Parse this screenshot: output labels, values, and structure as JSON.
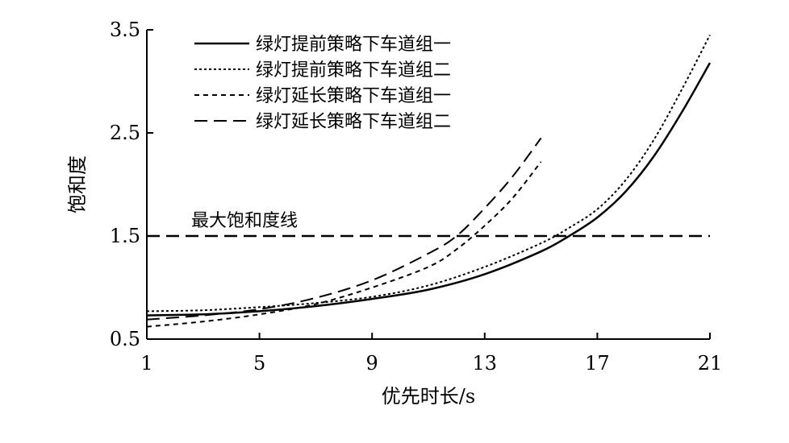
{
  "chart_data": {
    "type": "line",
    "xlabel": "优先时长/s",
    "ylabel": "饱和度",
    "xlim": [
      1,
      21
    ],
    "ylim": [
      0.5,
      3.5
    ],
    "xticks": [
      1,
      5,
      9,
      13,
      17,
      21
    ],
    "yticks": [
      0.5,
      1.5,
      2.5,
      3.5
    ],
    "ytick_labels": [
      "0.5",
      "1.5",
      "2.5",
      "3.5"
    ],
    "grid": false,
    "legend_position": "top-left",
    "series": [
      {
        "name": "绿灯提前策略下车道组一",
        "style": "solid",
        "x": [
          1,
          3,
          5,
          7,
          9,
          11,
          13,
          15,
          16,
          17,
          18,
          19,
          20,
          21
        ],
        "y": [
          0.73,
          0.74,
          0.77,
          0.82,
          0.89,
          0.98,
          1.13,
          1.35,
          1.5,
          1.68,
          1.93,
          2.27,
          2.7,
          3.18
        ]
      },
      {
        "name": "绿灯提前策略下车道组二",
        "style": "dotted",
        "x": [
          1,
          3,
          5,
          7,
          9,
          11,
          13,
          15,
          16,
          17,
          18,
          19,
          20,
          21
        ],
        "y": [
          0.77,
          0.78,
          0.81,
          0.85,
          0.91,
          1.02,
          1.2,
          1.43,
          1.58,
          1.76,
          2.04,
          2.43,
          2.92,
          3.45
        ]
      },
      {
        "name": "绿灯延长策略下车道组一",
        "style": "short-dash",
        "x": [
          1,
          3,
          5,
          7,
          9,
          11,
          12,
          13,
          14,
          15
        ],
        "y": [
          0.62,
          0.67,
          0.74,
          0.84,
          1.0,
          1.2,
          1.37,
          1.6,
          1.87,
          2.22
        ]
      },
      {
        "name": "绿灯延长策略下车道组二",
        "style": "long-dash",
        "x": [
          1,
          3,
          5,
          7,
          9,
          11,
          12,
          13,
          14,
          15
        ],
        "y": [
          0.69,
          0.73,
          0.79,
          0.9,
          1.07,
          1.33,
          1.5,
          1.77,
          2.08,
          2.45
        ]
      }
    ],
    "reference_line": {
      "label": "最大饱和度线",
      "y": 1.5,
      "style": "long-dash"
    }
  }
}
